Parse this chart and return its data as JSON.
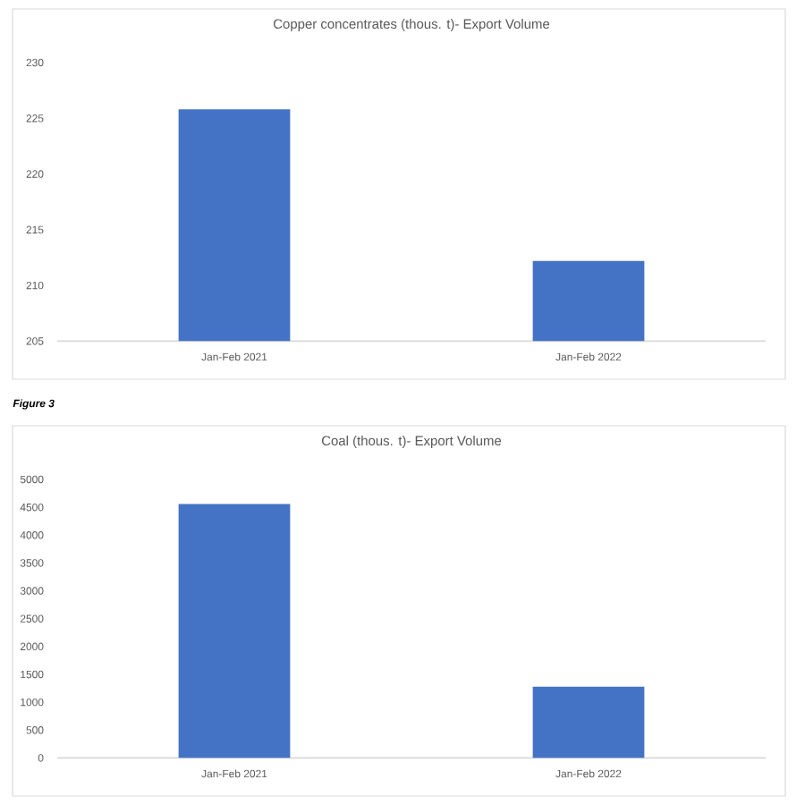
{
  "chart_data": [
    {
      "type": "bar",
      "title": "Copper concentrates (thous. t)- Export Volume",
      "categories": [
        "Jan-Feb 2021",
        "Jan-Feb 2022"
      ],
      "values": [
        225.8,
        212.2
      ],
      "color": "#4472c4",
      "ylim": [
        205,
        230
      ],
      "yticks": [
        205,
        210,
        215,
        220,
        225,
        230
      ]
    },
    {
      "type": "bar",
      "title": "Coal (thous. t)- Export Volume",
      "categories": [
        "Jan-Feb 2021",
        "Jan-Feb 2022"
      ],
      "values": [
        4560,
        1280
      ],
      "color": "#4472c4",
      "ylim": [
        0,
        5000
      ],
      "yticks": [
        0,
        500,
        1000,
        1500,
        2000,
        2500,
        3000,
        3500,
        4000,
        4500,
        5000
      ],
      "annotations": [
        "Figure 3"
      ]
    }
  ]
}
